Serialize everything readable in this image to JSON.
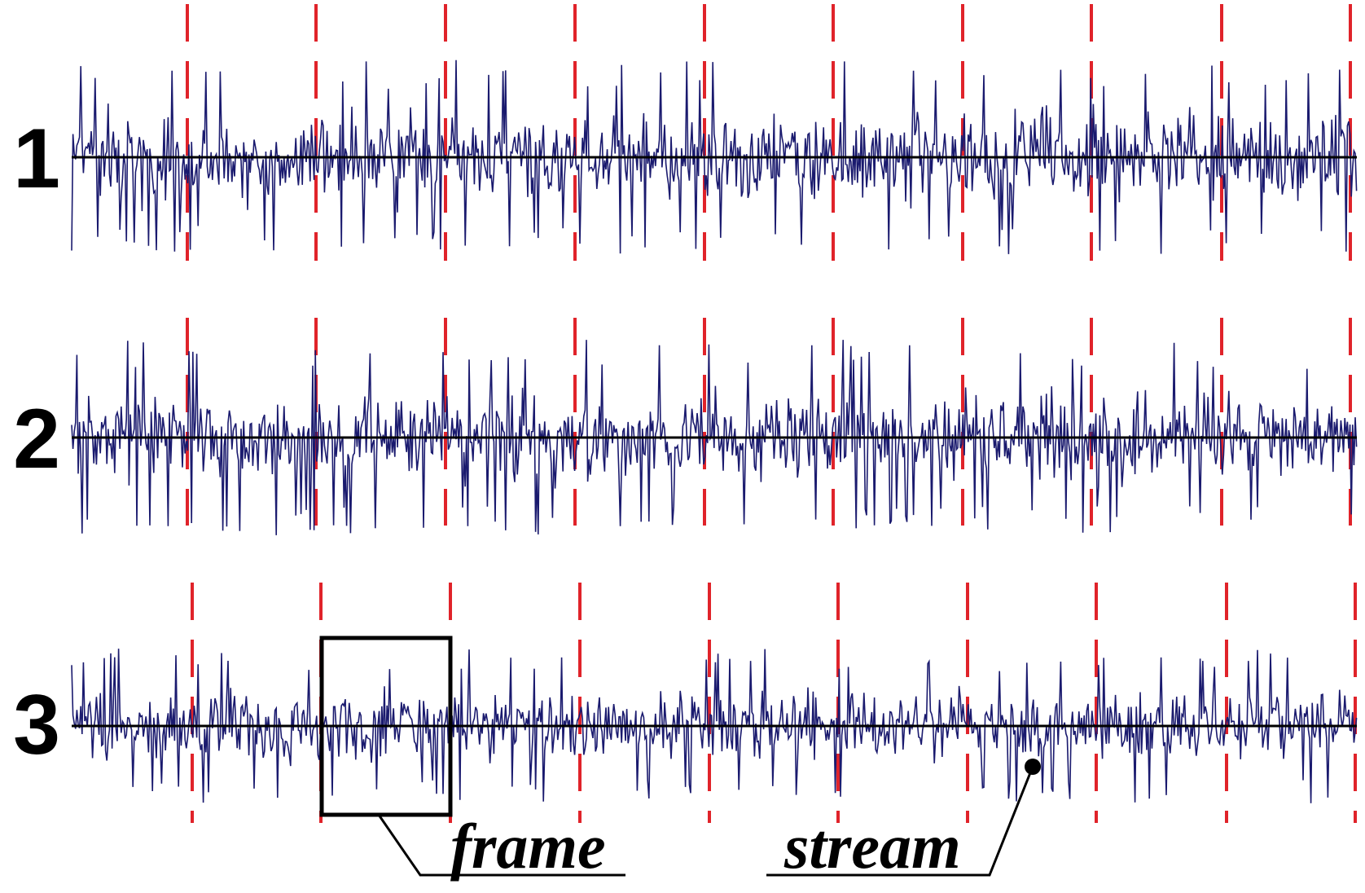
{
  "rows": [
    {
      "label": "1"
    },
    {
      "label": "2"
    },
    {
      "label": "3"
    }
  ],
  "annotations": {
    "frame": "frame",
    "stream": "stream"
  },
  "colors": {
    "signal": "#1a1a6e",
    "frame_marker": "#e0232a",
    "axis": "#000000",
    "background": "#ffffff"
  }
}
